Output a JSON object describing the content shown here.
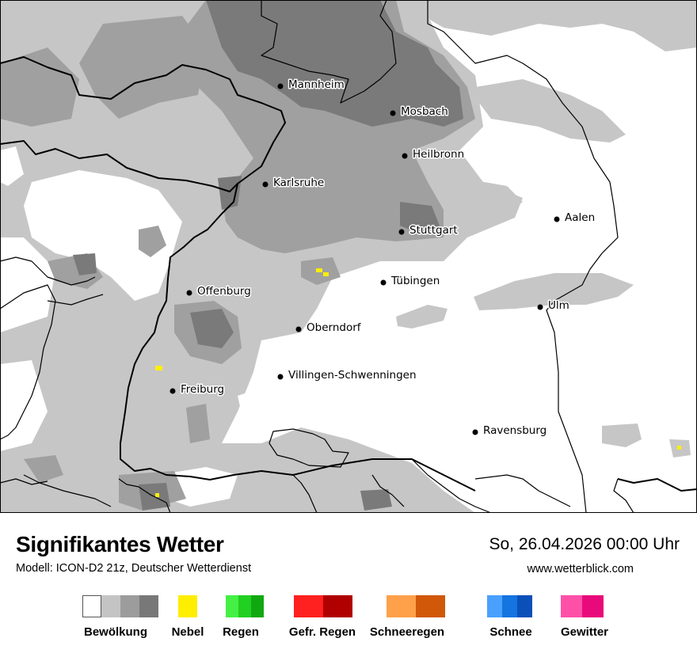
{
  "map": {
    "cities": [
      {
        "name": "Mannheim"
      },
      {
        "name": "Mosbach"
      },
      {
        "name": "Heilbronn"
      },
      {
        "name": "Karlsruhe"
      },
      {
        "name": "Aalen"
      },
      {
        "name": "Stuttgart"
      },
      {
        "name": "Tübingen"
      },
      {
        "name": "Offenburg"
      },
      {
        "name": "Ulm"
      },
      {
        "name": "Oberndorf"
      },
      {
        "name": "Villingen-Schwenningen"
      },
      {
        "name": "Freiburg"
      },
      {
        "name": "Ravensburg"
      }
    ]
  },
  "footer": {
    "title": "Signifikantes Wetter",
    "subtitle": "Modell: ICON-D2 21z, Deutscher Wetterdienst",
    "datetime": "So, 26.04.2026 00:00 Uhr",
    "website": "www.wetterblick.com"
  },
  "legend": [
    {
      "label": "Bewölkung",
      "colors": [
        "#ffffff",
        "#c4c4c4",
        "#9c9c9c",
        "#787878"
      ]
    },
    {
      "label": "Nebel",
      "colors": [
        "#ffee00"
      ]
    },
    {
      "label": "Regen",
      "colors": [
        "#44f044",
        "#22d022",
        "#10a810"
      ]
    },
    {
      "label": "Gefr. Regen",
      "colors": [
        "#ff2020",
        "#b00000"
      ]
    },
    {
      "label": "Schneeregen",
      "colors": [
        "#ffa04a",
        "#d05808"
      ]
    },
    {
      "label": "Schnee",
      "colors": [
        "#4aa0ff",
        "#1474e0",
        "#0a50b8"
      ]
    },
    {
      "label": "Gewitter",
      "colors": [
        "#ff50a8",
        "#e80a7a"
      ]
    }
  ]
}
